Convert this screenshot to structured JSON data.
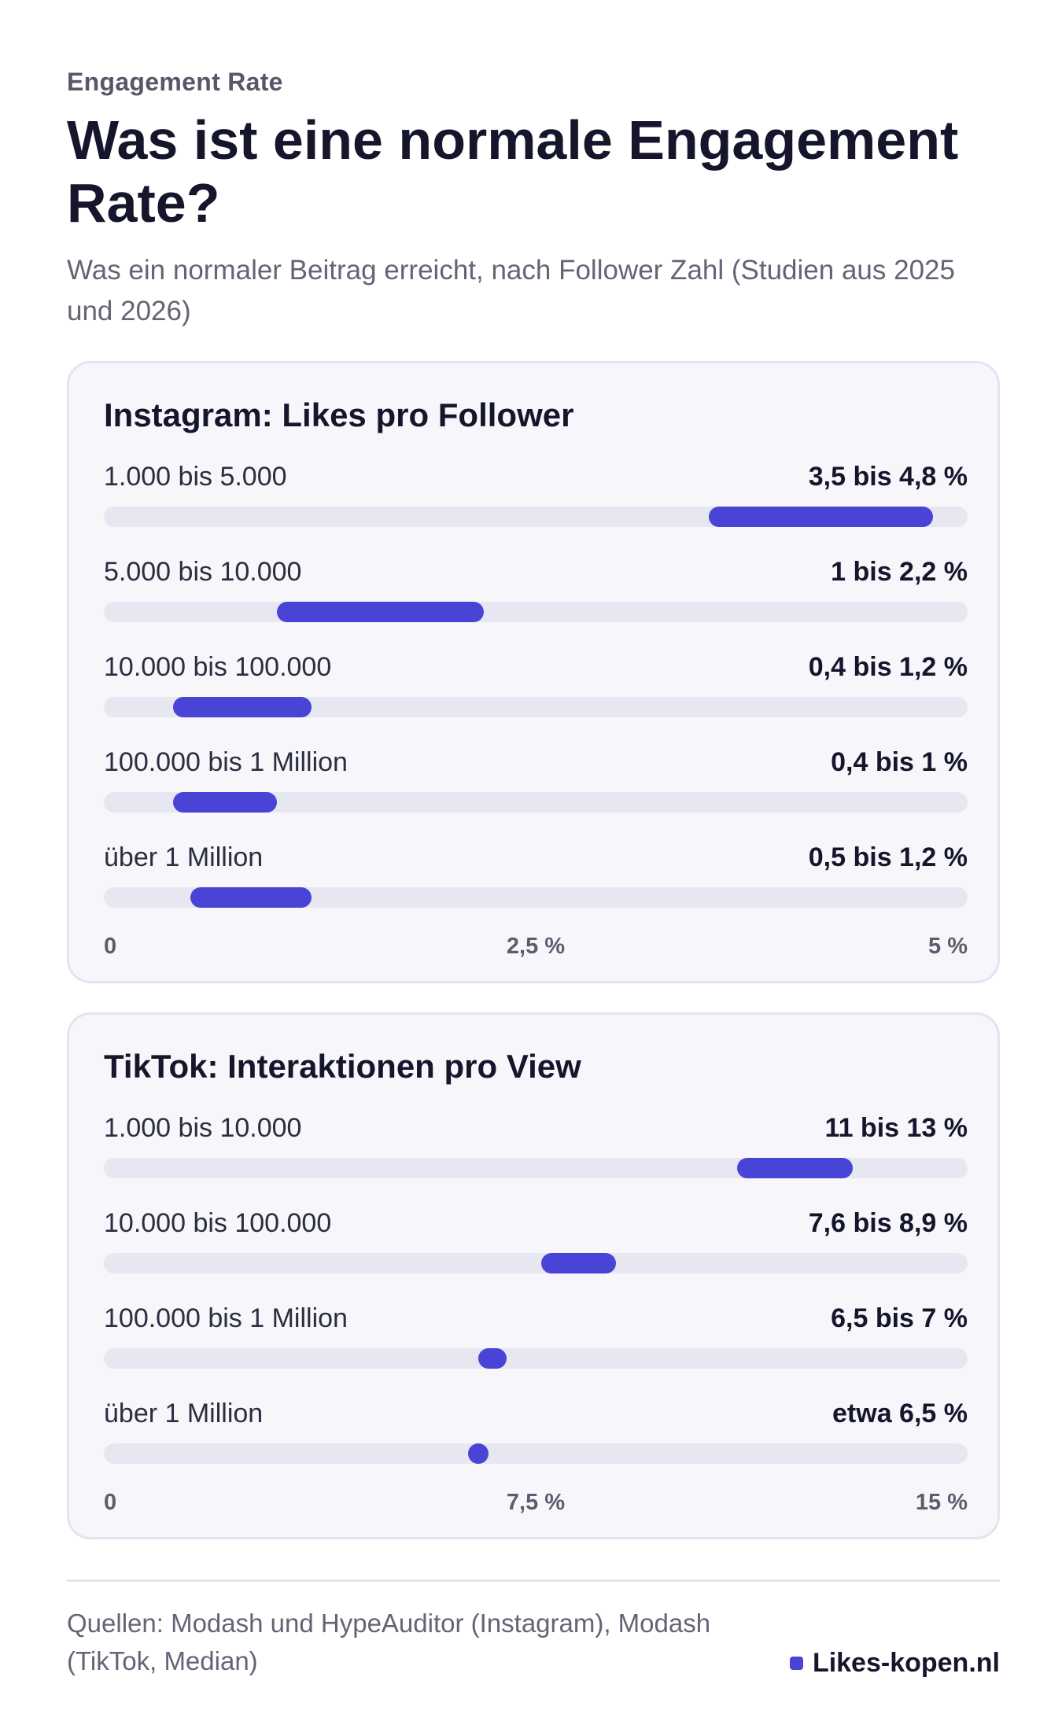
{
  "header": {
    "eyebrow": "Engagement Rate",
    "title": "Was ist eine normale Engagement Rate?",
    "subtitle": "Was ein normaler Beitrag erreicht, nach Follower Zahl (Studien aus 2025 und 2026)"
  },
  "colors": {
    "bar": "#4a44d6",
    "track": "#e7e7f1",
    "card": "#f6f6fb"
  },
  "chart_data": [
    {
      "type": "bar",
      "orientation": "horizontal-range",
      "title": "Instagram: Likes pro Follower",
      "xlim": [
        0,
        5
      ],
      "ticks": [
        "0",
        "2,5 %",
        "5 %"
      ],
      "categories": [
        "1.000 bis 5.000",
        "5.000 bis 10.000",
        "10.000 bis 100.000",
        "100.000 bis 1 Million",
        "über 1 Million"
      ],
      "value_labels": [
        "3,5 bis 4,8 %",
        "1 bis 2,2 %",
        "0,4 bis 1,2 %",
        "0,4 bis 1 %",
        "0,5 bis 1,2 %"
      ],
      "ranges": [
        [
          3.5,
          4.8
        ],
        [
          1,
          2.2
        ],
        [
          0.4,
          1.2
        ],
        [
          0.4,
          1
        ],
        [
          0.5,
          1.2
        ]
      ]
    },
    {
      "type": "bar",
      "orientation": "horizontal-range",
      "title": "TikTok: Interaktionen pro View",
      "xlim": [
        0,
        15
      ],
      "ticks": [
        "0",
        "7,5 %",
        "15 %"
      ],
      "categories": [
        "1.000 bis 10.000",
        "10.000 bis 100.000",
        "100.000 bis 1 Million",
        "über 1 Million"
      ],
      "value_labels": [
        "11 bis 13 %",
        "7,6 bis 8,9 %",
        "6,5 bis 7 %",
        "etwa 6,5 %"
      ],
      "ranges": [
        [
          11,
          13
        ],
        [
          7.6,
          8.9
        ],
        [
          6.5,
          7
        ],
        [
          6.5,
          6.5
        ]
      ]
    }
  ],
  "footer": {
    "sources": "Quellen: Modash und HypeAuditor (Instagram), Modash (TikTok, Median)",
    "brand": "Likes-kopen.nl"
  }
}
